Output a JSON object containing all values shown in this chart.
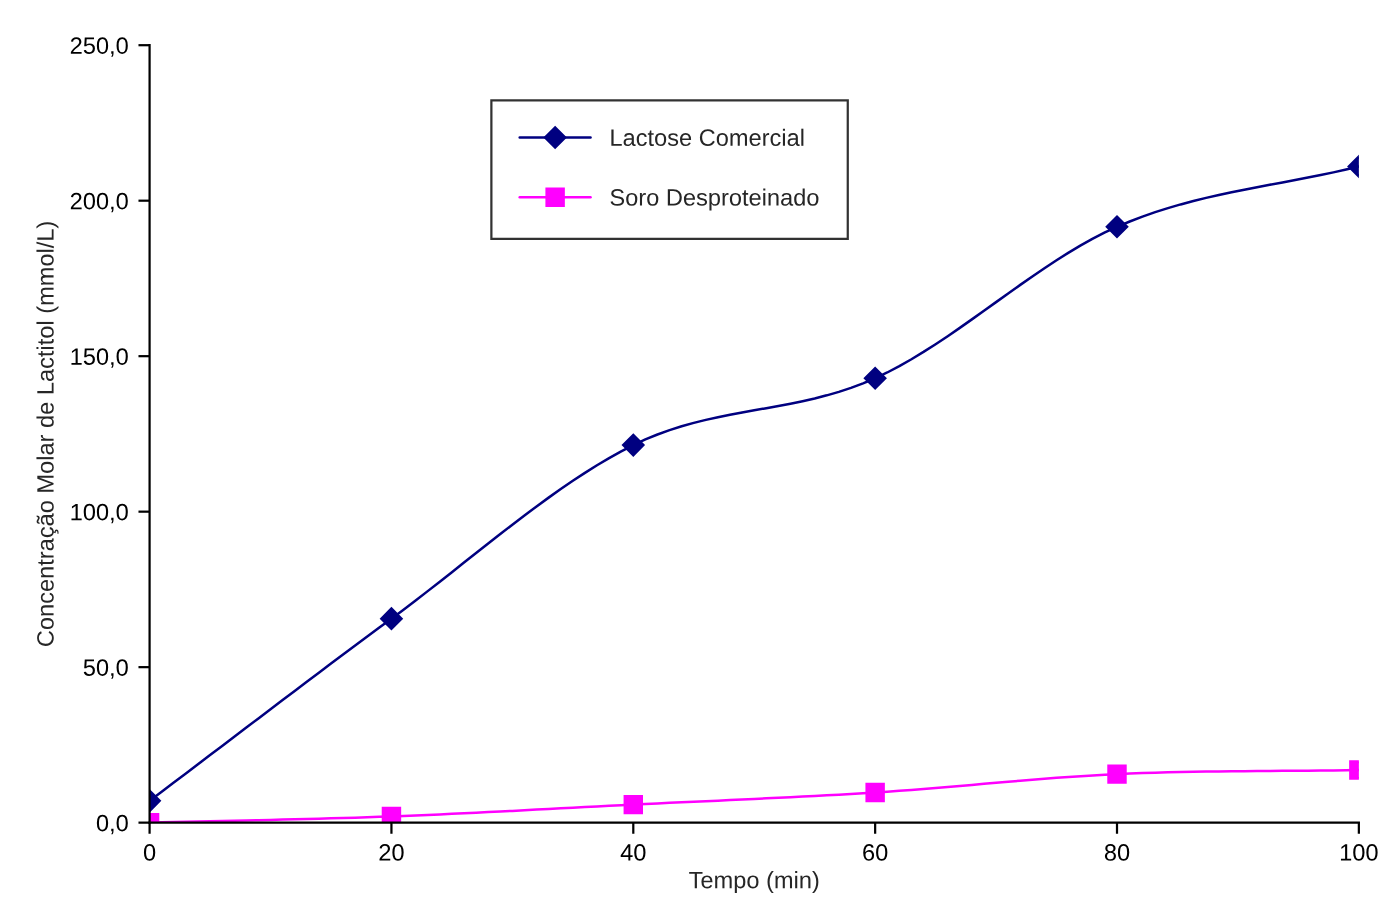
{
  "chart_data": {
    "type": "line",
    "xlabel": "Tempo (min)",
    "ylabel": "Concentração Molar de Lactitol (mmol/L)",
    "x": [
      0,
      20,
      40,
      60,
      80,
      100
    ],
    "series": [
      {
        "name": "Lactose Comercial",
        "color": "#000080",
        "marker": "diamond",
        "values": [
          7,
          65.6,
          121.4,
          142.9,
          191.6,
          211
        ]
      },
      {
        "name": "Soro Desproteinado",
        "color": "#ff00ff",
        "marker": "square",
        "values": [
          0,
          2,
          5.8,
          9.7,
          15.6,
          16.9
        ]
      }
    ],
    "xlim": [
      0,
      100
    ],
    "xticks": [
      0,
      20,
      40,
      60,
      80,
      100
    ],
    "ylim": [
      0,
      250
    ],
    "yticks": [
      {
        "value": 0,
        "label": "0,0"
      },
      {
        "value": 50,
        "label": "50,0"
      },
      {
        "value": 100,
        "label": "100,0"
      },
      {
        "value": 150,
        "label": "150,0"
      },
      {
        "value": 200,
        "label": "200,0"
      },
      {
        "value": 250,
        "label": "250,0"
      }
    ],
    "grid": false,
    "legend": "top",
    "line_style": "solid"
  }
}
